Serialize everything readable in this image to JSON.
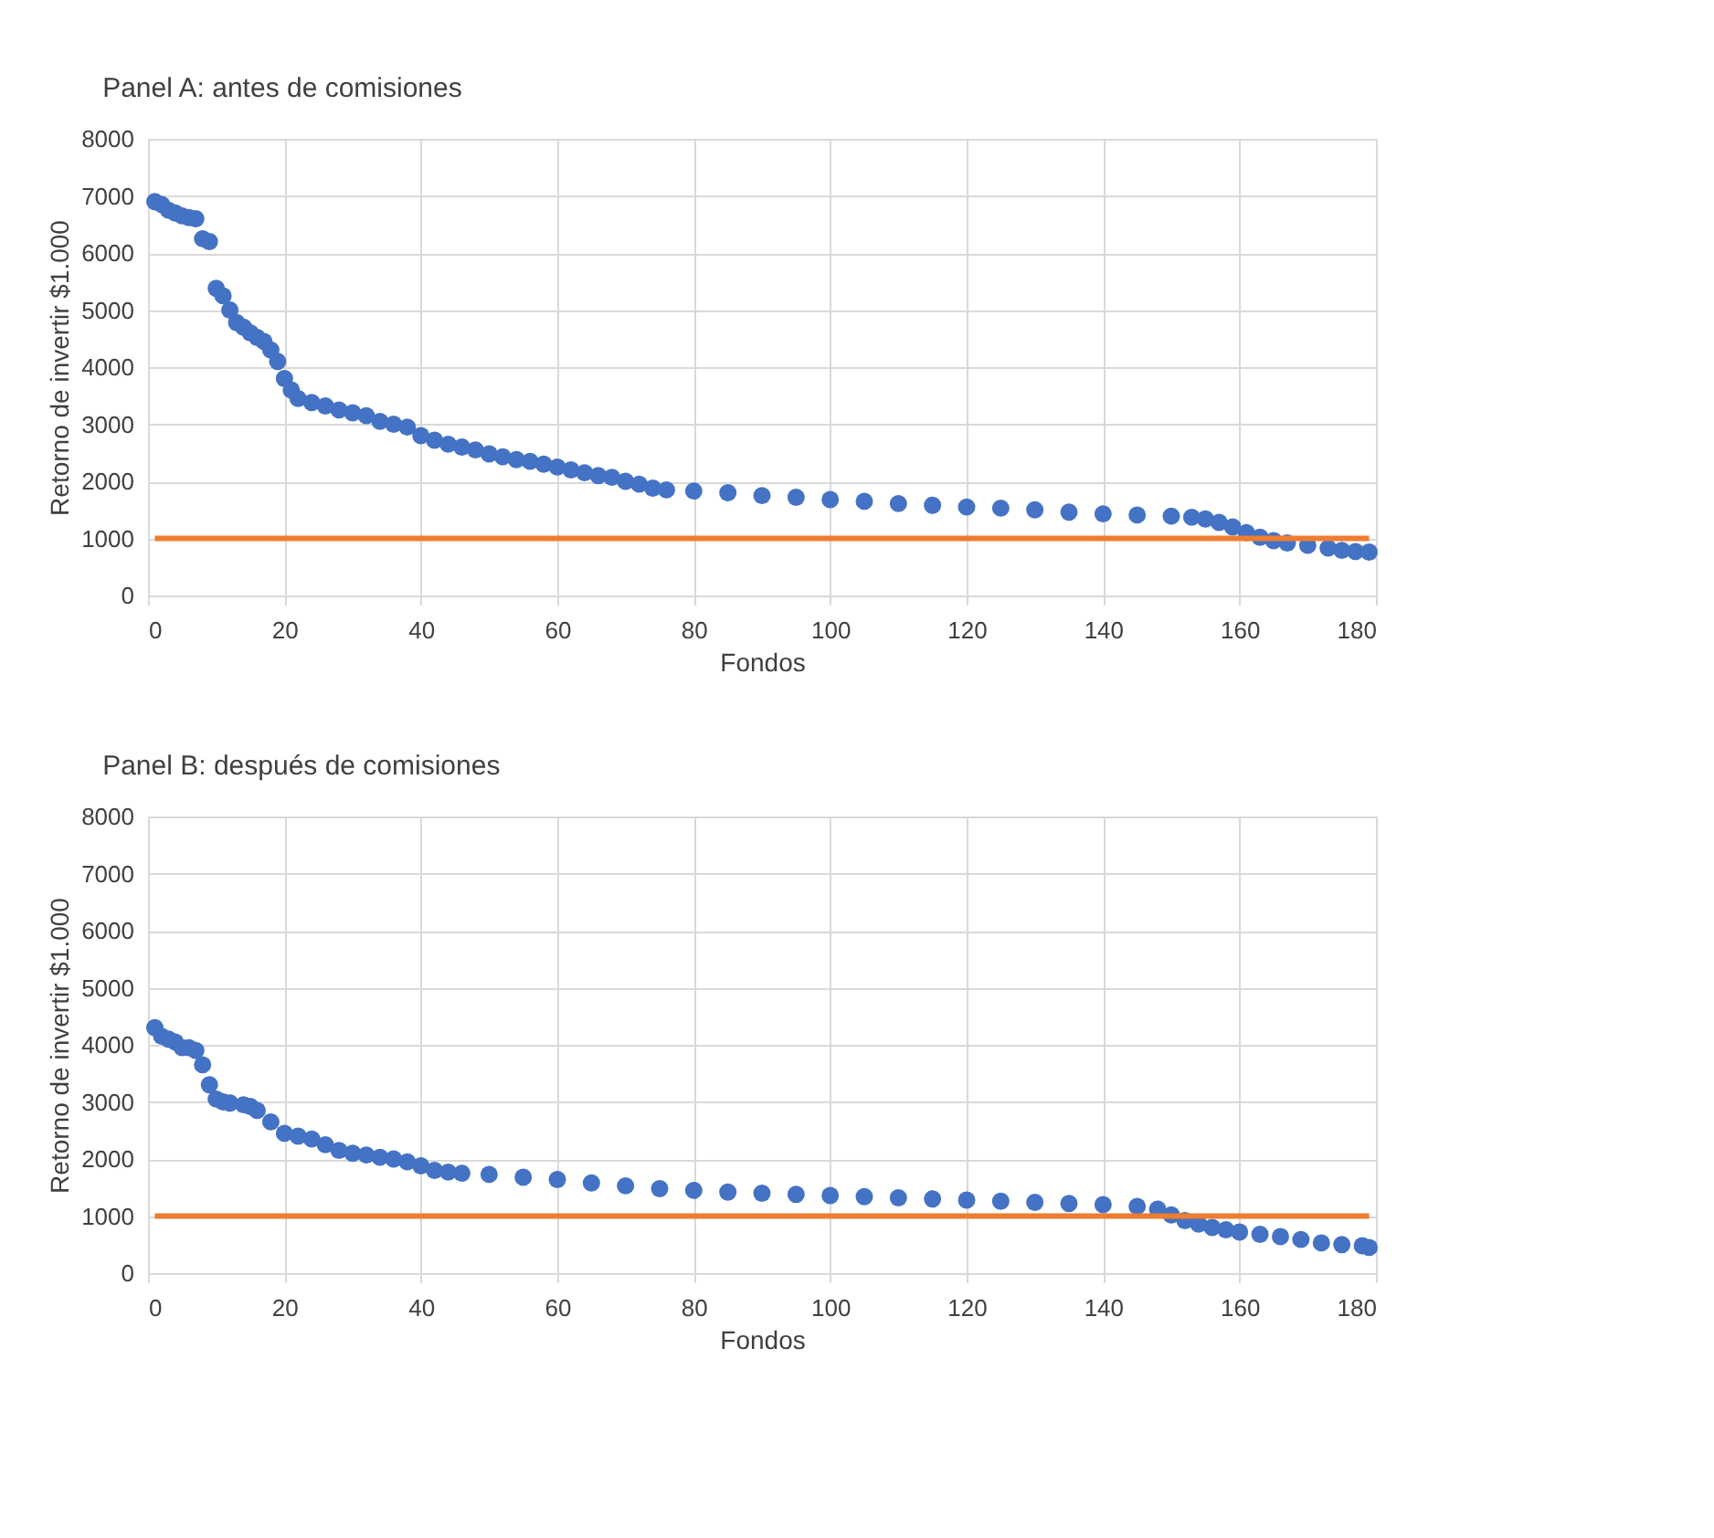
{
  "chart_data": [
    {
      "type": "scatter",
      "title": "Panel A: antes de comisiones",
      "xlabel": "Fondos",
      "ylabel": "Retorno de invertir $1.000",
      "xlim": [
        0,
        180
      ],
      "xticks": [
        0,
        20,
        40,
        60,
        80,
        100,
        120,
        140,
        160,
        180
      ],
      "ylim": [
        0,
        8000
      ],
      "yticks": [
        0,
        1000,
        2000,
        3000,
        4000,
        5000,
        6000,
        7000,
        8000
      ],
      "grid": true,
      "series": [
        {
          "color": "#4472c4",
          "marker": "circle",
          "x": [
            1,
            2,
            3,
            4,
            5,
            6,
            7,
            8,
            9,
            10,
            11,
            12,
            13,
            14,
            15,
            16,
            17,
            18,
            19,
            20,
            21,
            22,
            24,
            26,
            28,
            30,
            32,
            34,
            36,
            38,
            40,
            42,
            44,
            46,
            48,
            50,
            52,
            54,
            56,
            58,
            60,
            62,
            64,
            66,
            68,
            70,
            72,
            74,
            76,
            80,
            85,
            90,
            95,
            100,
            105,
            110,
            115,
            120,
            125,
            130,
            135,
            140,
            145,
            150,
            153,
            155,
            157,
            159,
            161,
            163,
            165,
            167,
            170,
            173,
            175,
            177,
            179
          ],
          "values": [
            6900,
            6850,
            6750,
            6700,
            6650,
            6620,
            6600,
            6250,
            6200,
            5380,
            5250,
            5000,
            4780,
            4700,
            4600,
            4520,
            4450,
            4300,
            4100,
            3800,
            3600,
            3450,
            3380,
            3320,
            3250,
            3200,
            3150,
            3050,
            3000,
            2950,
            2800,
            2720,
            2650,
            2600,
            2550,
            2480,
            2430,
            2380,
            2350,
            2300,
            2250,
            2200,
            2150,
            2100,
            2070,
            2000,
            1950,
            1880,
            1850,
            1830,
            1800,
            1750,
            1720,
            1680,
            1650,
            1610,
            1580,
            1550,
            1530,
            1500,
            1460,
            1430,
            1410,
            1390,
            1370,
            1340,
            1280,
            1200,
            1100,
            1020,
            960,
            920,
            880,
            830,
            790,
            770,
            760
          ]
        },
        {
          "type": "line",
          "color": "#ed7d31",
          "x": [
            1,
            179
          ],
          "values": [
            1000,
            1000
          ]
        }
      ]
    },
    {
      "type": "scatter",
      "title": "Panel B: después de comisiones",
      "xlabel": "Fondos",
      "ylabel": "Retorno de invertir $1.000",
      "xlim": [
        0,
        180
      ],
      "xticks": [
        0,
        20,
        40,
        60,
        80,
        100,
        120,
        140,
        160,
        180
      ],
      "ylim": [
        0,
        8000
      ],
      "yticks": [
        0,
        1000,
        2000,
        3000,
        4000,
        5000,
        6000,
        7000,
        8000
      ],
      "grid": true,
      "series": [
        {
          "color": "#4472c4",
          "marker": "circle",
          "x": [
            1,
            2,
            3,
            4,
            5,
            6,
            7,
            8,
            9,
            10,
            11,
            12,
            14,
            15,
            16,
            18,
            20,
            22,
            24,
            26,
            28,
            30,
            32,
            34,
            36,
            38,
            40,
            42,
            44,
            46,
            50,
            55,
            60,
            65,
            70,
            75,
            80,
            85,
            90,
            95,
            100,
            105,
            110,
            115,
            120,
            125,
            130,
            135,
            140,
            145,
            148,
            150,
            152,
            154,
            156,
            158,
            160,
            163,
            166,
            169,
            172,
            175,
            178,
            179
          ],
          "values": [
            4300,
            4150,
            4100,
            4050,
            3950,
            3950,
            3900,
            3650,
            3300,
            3050,
            3000,
            2980,
            2950,
            2920,
            2850,
            2650,
            2450,
            2400,
            2350,
            2250,
            2150,
            2100,
            2070,
            2030,
            2000,
            1950,
            1880,
            1800,
            1770,
            1750,
            1730,
            1680,
            1640,
            1580,
            1530,
            1480,
            1450,
            1420,
            1400,
            1380,
            1360,
            1340,
            1320,
            1300,
            1280,
            1260,
            1240,
            1220,
            1200,
            1170,
            1120,
            1020,
            920,
            860,
            800,
            760,
            720,
            680,
            640,
            590,
            530,
            500,
            480,
            450
          ]
        },
        {
          "type": "line",
          "color": "#ed7d31",
          "x": [
            1,
            179
          ],
          "values": [
            1000,
            1000
          ]
        }
      ]
    }
  ]
}
